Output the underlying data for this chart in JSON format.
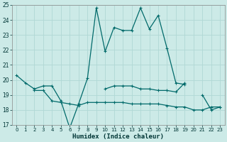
{
  "xlabel": "Humidex (Indice chaleur)",
  "x": [
    0,
    1,
    2,
    3,
    4,
    5,
    6,
    7,
    8,
    9,
    10,
    11,
    12,
    13,
    14,
    15,
    16,
    17,
    18,
    19,
    20,
    21,
    22,
    23
  ],
  "line_main": [
    20.3,
    19.8,
    19.4,
    19.6,
    19.6,
    18.6,
    16.8,
    18.4,
    20.1,
    24.8,
    21.9,
    23.5,
    23.3,
    23.3,
    24.8,
    23.4,
    24.3,
    22.1,
    19.8,
    19.7,
    null,
    19.0,
    18.0,
    18.2
  ],
  "line_upper": [
    null,
    null,
    null,
    null,
    null,
    null,
    null,
    null,
    null,
    null,
    19.4,
    19.6,
    19.6,
    19.6,
    19.4,
    19.4,
    19.3,
    19.3,
    19.2,
    19.8,
    null,
    null,
    null,
    null
  ],
  "line_lower": [
    null,
    null,
    19.3,
    19.3,
    18.6,
    18.5,
    18.4,
    18.3,
    18.5,
    18.5,
    18.5,
    18.5,
    18.5,
    18.4,
    18.4,
    18.4,
    18.4,
    18.3,
    18.2,
    18.2,
    18.0,
    18.0,
    18.2,
    18.2
  ],
  "line_start": [
    20.3,
    19.8,
    null,
    null,
    null,
    null,
    null,
    null,
    null,
    null,
    null,
    null,
    null,
    null,
    null,
    null,
    null,
    null,
    null,
    null,
    null,
    null,
    null,
    null
  ],
  "bg_color": "#cceae7",
  "line_color": "#006a6a",
  "grid_color": "#b0d8d5",
  "ylim": [
    17,
    25
  ],
  "xlim": [
    -0.5,
    23.5
  ],
  "yticks": [
    17,
    18,
    19,
    20,
    21,
    22,
    23,
    24,
    25
  ],
  "xticks": [
    0,
    1,
    2,
    3,
    4,
    5,
    6,
    7,
    8,
    9,
    10,
    11,
    12,
    13,
    14,
    15,
    16,
    17,
    18,
    19,
    20,
    21,
    22,
    23
  ]
}
